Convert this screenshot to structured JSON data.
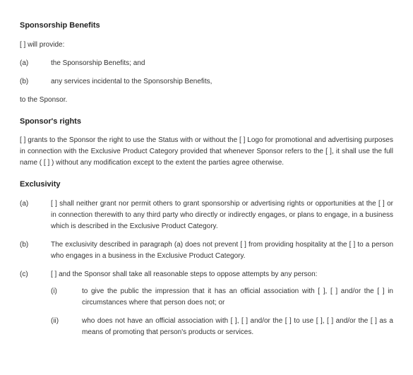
{
  "section1": {
    "heading": "Sponsorship Benefits",
    "intro": "[ ] will provide:",
    "items": [
      {
        "marker": "(a)",
        "text": "the Sponsorship Benefits; and"
      },
      {
        "marker": "(b)",
        "text": "any services incidental to the Sponsorship Benefits,"
      }
    ],
    "outro": "to the Sponsor."
  },
  "section2": {
    "heading": "Sponsor's rights",
    "text": "[ ] grants to the Sponsor the right to use the Status with or without the [ ] Logo for promotional and advertising purposes in connection with the Exclusive Product Category provided that whenever Sponsor refers to the [ ], it shall use the full name ( [ ] ) without any modification except to the extent the parties agree otherwise."
  },
  "section3": {
    "heading": "Exclusivity",
    "items": [
      {
        "marker": "(a)",
        "text": "[ ] shall neither grant nor permit others to grant sponsorship or advertising rights or opportunities at the [ ] or in connection therewith to any third party who directly or indirectly engages, or plans to engage, in a business which is described in the Exclusive Product Category."
      },
      {
        "marker": "(b)",
        "text": "The exclusivity described in paragraph (a) does not prevent [ ] from providing hospitality at the [ ] to a person who engages in a business in the Exclusive Product Category."
      },
      {
        "marker": "(c)",
        "text": "[ ] and the Sponsor shall take all reasonable steps to oppose attempts by any person:",
        "subitems": [
          {
            "marker": "(i)",
            "text": "to give the public the impression that it has an official association with [ ], [ ] and/or the [ ] in circumstances where that person does not; or"
          },
          {
            "marker": "(ii)",
            "text": "who does not have an official association with [ ], [ ] and/or the [ ] to use [ ], [ ] and/or the [ ] as a means of promoting that person's products or services."
          }
        ]
      }
    ]
  }
}
